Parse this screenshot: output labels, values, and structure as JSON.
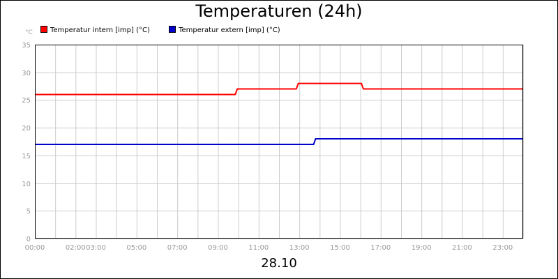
{
  "chart_data": {
    "type": "line",
    "title": "Temperaturen (24h)",
    "ylabel": "°C",
    "xlabel": "28.10",
    "ylim": [
      0,
      35
    ],
    "yticks": [
      "0",
      "5",
      "10",
      "15",
      "20",
      "25",
      "30",
      "35"
    ],
    "xlim": [
      0,
      24
    ],
    "xticks": [
      {
        "x": 0,
        "label": "00:00"
      },
      {
        "x": 2,
        "label": "02:00"
      },
      {
        "x": 3,
        "label": "03:00"
      },
      {
        "x": 5,
        "label": "05:00"
      },
      {
        "x": 7,
        "label": "07:00"
      },
      {
        "x": 9,
        "label": "09:00"
      },
      {
        "x": 11,
        "label": "11:00"
      },
      {
        "x": 13,
        "label": "13:00"
      },
      {
        "x": 15,
        "label": "15:00"
      },
      {
        "x": 17,
        "label": "17:00"
      },
      {
        "x": 19,
        "label": "19:00"
      },
      {
        "x": 21,
        "label": "21:00"
      },
      {
        "x": 23,
        "label": "23:00"
      }
    ],
    "grid": true,
    "legend_position": "top-left",
    "series": [
      {
        "name": "Temperatur intern [imp] (°C)",
        "color": "#ff0000",
        "x": [
          0,
          9.85,
          9.95,
          12.85,
          12.95,
          16.05,
          16.15,
          24
        ],
        "y": [
          26,
          26,
          27,
          27,
          28,
          28,
          27,
          27
        ]
      },
      {
        "name": "Temperatur extern [imp] (°C)",
        "color": "#0000cc",
        "x": [
          0,
          13.7,
          13.8,
          24
        ],
        "y": [
          17,
          17,
          18,
          18
        ]
      }
    ]
  }
}
